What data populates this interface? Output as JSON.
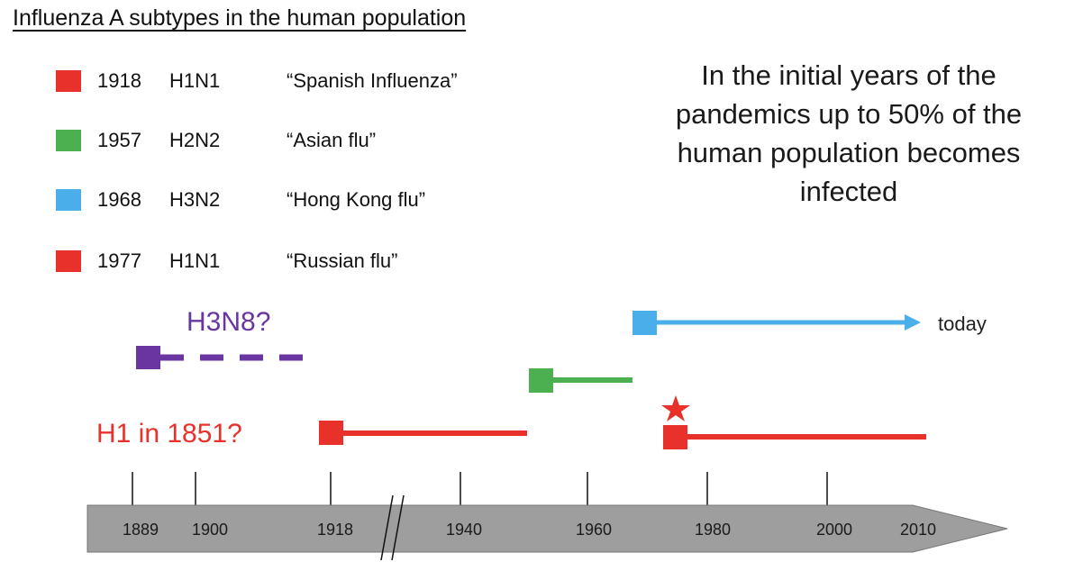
{
  "title": "Influenza A subtypes in the human population",
  "legend": [
    {
      "year": "1918",
      "subtype": "H1N1",
      "name": "“Spanish Influenza”",
      "color": "#e8312a"
    },
    {
      "year": "1957",
      "subtype": "H2N2",
      "name": "“Asian flu”",
      "color": "#4caf50"
    },
    {
      "year": "1968",
      "subtype": "H3N2",
      "name": "“Hong Kong flu”",
      "color": "#4aaeea"
    },
    {
      "year": "1977",
      "subtype": "H1N1",
      "name": "“Russian flu”",
      "color": "#e8312a"
    }
  ],
  "note": "In the initial years of the pandemics up to 50% of the human population becomes infected",
  "annotations": {
    "h3n8": "H3N8?",
    "h1_1851": "H1 in 1851?",
    "today": "today"
  },
  "axis": {
    "ticks": [
      "1889",
      "1900",
      "1918",
      "1940",
      "1960",
      "1980",
      "2000",
      "2010"
    ]
  },
  "colors": {
    "red": "#e8312a",
    "green": "#4caf50",
    "blue": "#4aaeea",
    "purple": "#6a35a0",
    "axis_fill": "#9e9e9e"
  }
}
